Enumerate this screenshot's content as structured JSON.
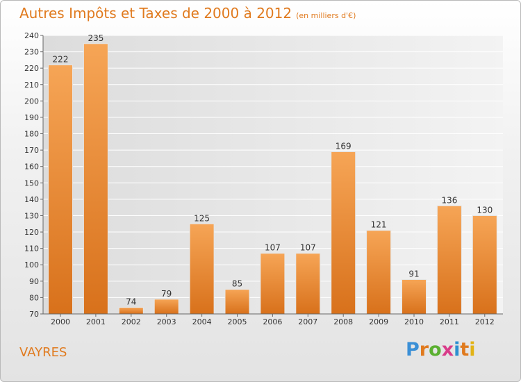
{
  "header": {
    "title": "Autres Impôts et Taxes de 2000 à 2012",
    "unit": "(en milliers d'€)"
  },
  "footer": {
    "commune": "VAYRES"
  },
  "logo": {
    "letters": [
      "P",
      "r",
      "o",
      "x",
      "i",
      "t",
      "i"
    ],
    "colors": [
      "#3a8fd6",
      "#e07a1e",
      "#5bb031",
      "#d93c8a",
      "#2c8fd0",
      "#e07a1e",
      "#e2b316"
    ]
  },
  "chart_data": {
    "type": "bar",
    "categories": [
      "2000",
      "2001",
      "2002",
      "2003",
      "2004",
      "2005",
      "2006",
      "2007",
      "2008",
      "2009",
      "2010",
      "2011",
      "2012"
    ],
    "values": [
      222,
      235,
      74,
      79,
      125,
      85,
      107,
      107,
      169,
      121,
      91,
      136,
      130
    ],
    "ylim": [
      70,
      240
    ],
    "yticks": [
      70,
      80,
      90,
      100,
      110,
      120,
      130,
      140,
      150,
      160,
      170,
      180,
      190,
      200,
      210,
      220,
      230,
      240
    ],
    "grid": true,
    "bar_color": "#f39a3a"
  }
}
